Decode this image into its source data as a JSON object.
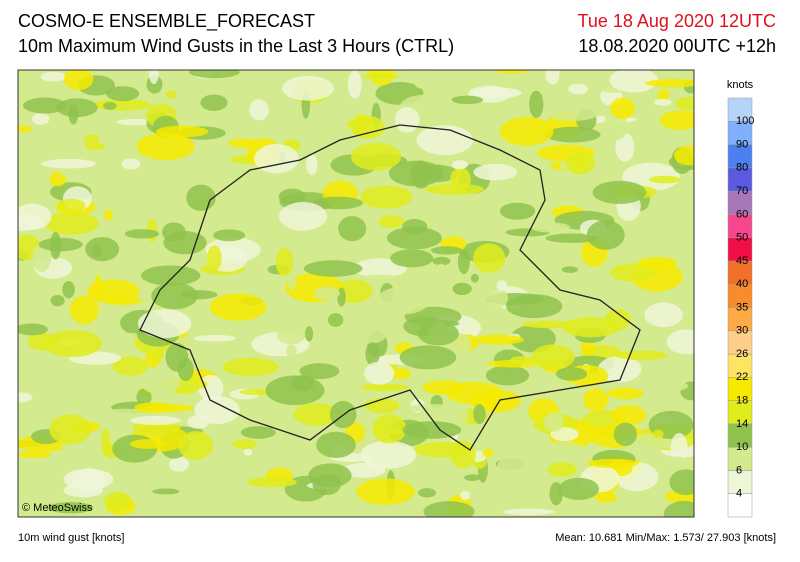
{
  "header": {
    "title": "COSMO-E ENSEMBLE_FORECAST",
    "subtitle": "10m Maximum Wind Gusts in the Last 3 Hours (CTRL)",
    "valid_time": "Tue 18 Aug 2020 12UTC",
    "run": "18.08.2020 00UTC +12h"
  },
  "map": {
    "credit": "© MeteoSwiss"
  },
  "colorbar": {
    "title": "knots",
    "ticks": [
      4,
      6,
      10,
      14,
      18,
      22,
      26,
      30,
      35,
      40,
      45,
      50,
      60,
      70,
      80,
      90,
      100
    ],
    "colors": [
      "#ffffff",
      "#eef6d8",
      "#d3ea8e",
      "#8fc34e",
      "#e1ec1c",
      "#f6ea00",
      "#fde462",
      "#fdcf88",
      "#fdab47",
      "#f98b2d",
      "#f2702a",
      "#f10d45",
      "#f6478f",
      "#a877b8",
      "#5a5ae0",
      "#4c80f0",
      "#80b0fa",
      "#b6d3f8"
    ]
  },
  "footer": {
    "variable": "10m wind gust [knots]",
    "stats": "Mean: 10.681 Min/Max:  1.573/ 27.903 [knots]"
  }
}
